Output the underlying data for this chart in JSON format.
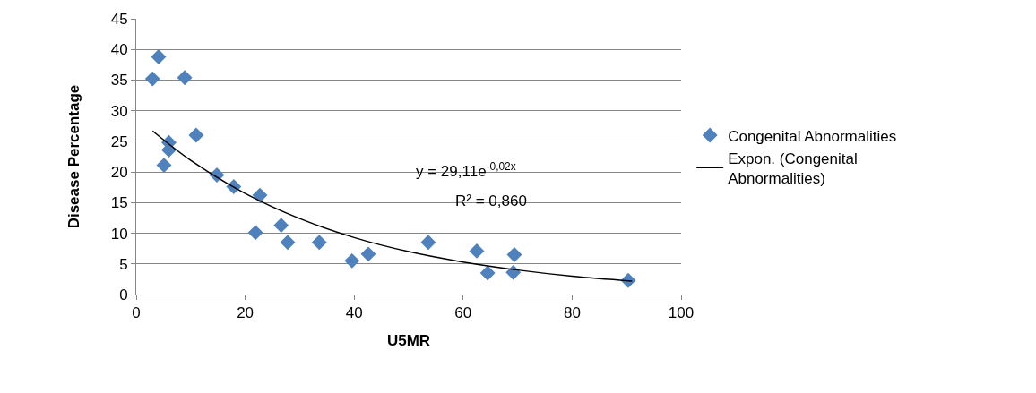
{
  "chart_data": {
    "type": "scatter",
    "xlabel": "U5MR",
    "ylabel": "Disease Percentage",
    "xlim": [
      0,
      100
    ],
    "xticks": [
      0,
      20,
      40,
      60,
      80,
      100
    ],
    "ylim": [
      0,
      45
    ],
    "yticks": [
      0,
      5,
      10,
      15,
      20,
      25,
      30,
      35,
      40,
      45
    ],
    "grid": "y",
    "legend": "right",
    "annotations": [
      "y = 29,11e$^{-0,02x}$",
      "R² = 0,860"
    ],
    "series": [
      {
        "name": "Congenital Abnormalities",
        "color": "#4f81bd",
        "marker": "diamond",
        "x": [
          3,
          4.1,
          5.1,
          6,
          6,
          8.9,
          11,
          14.8,
          17.9,
          22.7,
          21.9,
          26.6,
          27.8,
          33.6,
          39.6,
          42.6,
          53.6,
          62.5,
          64.5,
          69.4,
          69.2,
          90.3
        ],
        "values": [
          35.2,
          38.8,
          21.1,
          24.8,
          23.6,
          35.4,
          26,
          19.5,
          17.6,
          16.2,
          10.1,
          11.3,
          8.5,
          8.5,
          5.5,
          6.6,
          8.5,
          7.1,
          3.5,
          6.5,
          3.6,
          2.3
        ]
      },
      {
        "name": "Expon. (Congenital Abnormalities)",
        "type": "line",
        "color": "#000000",
        "marker": "none",
        "line_style": "solid",
        "x": [
          3,
          10,
          20,
          30,
          40,
          50,
          60,
          70,
          80,
          91
        ],
        "values": [
          26.7,
          21.9,
          16.5,
          12.4,
          9.3,
          7.0,
          5.3,
          4.0,
          3.0,
          2.2
        ]
      }
    ]
  }
}
